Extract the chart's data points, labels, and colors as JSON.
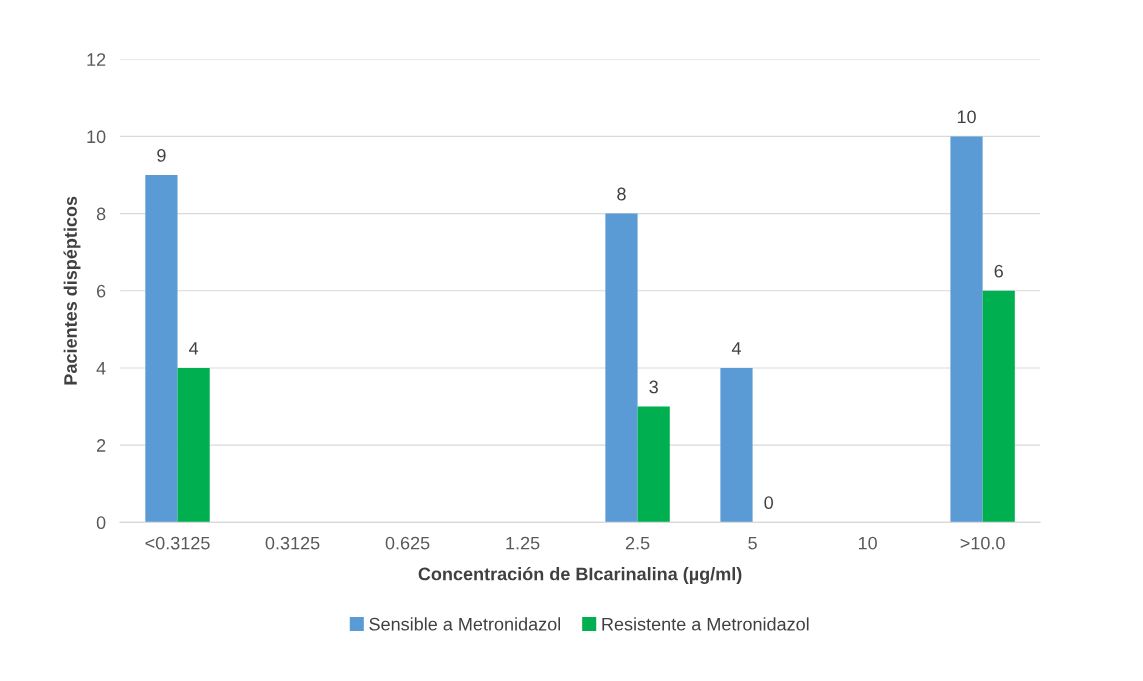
{
  "chart_data": {
    "type": "bar",
    "xlabel": "Concentración de BIcarinalina (µg/ml)",
    "ylabel": "Pacientes dispépticos",
    "categories": [
      "<0.3125",
      "0.3125",
      "0.625",
      "1.25",
      "2.5",
      "5",
      "10",
      ">10.0"
    ],
    "series": [
      {
        "name": "Sensible a Metronidazol",
        "color": "#5b9bd5",
        "values": [
          9,
          null,
          null,
          null,
          8,
          4,
          null,
          10
        ]
      },
      {
        "name": "Resistente a Metronidazol",
        "color": "#00b050",
        "values": [
          4,
          null,
          null,
          null,
          3,
          0,
          null,
          6
        ]
      }
    ],
    "ylim": [
      0,
      12
    ],
    "yticks": [
      0,
      2,
      4,
      6,
      8,
      10,
      12
    ],
    "grid": "y",
    "legend": "bottom",
    "data_labels": true
  }
}
